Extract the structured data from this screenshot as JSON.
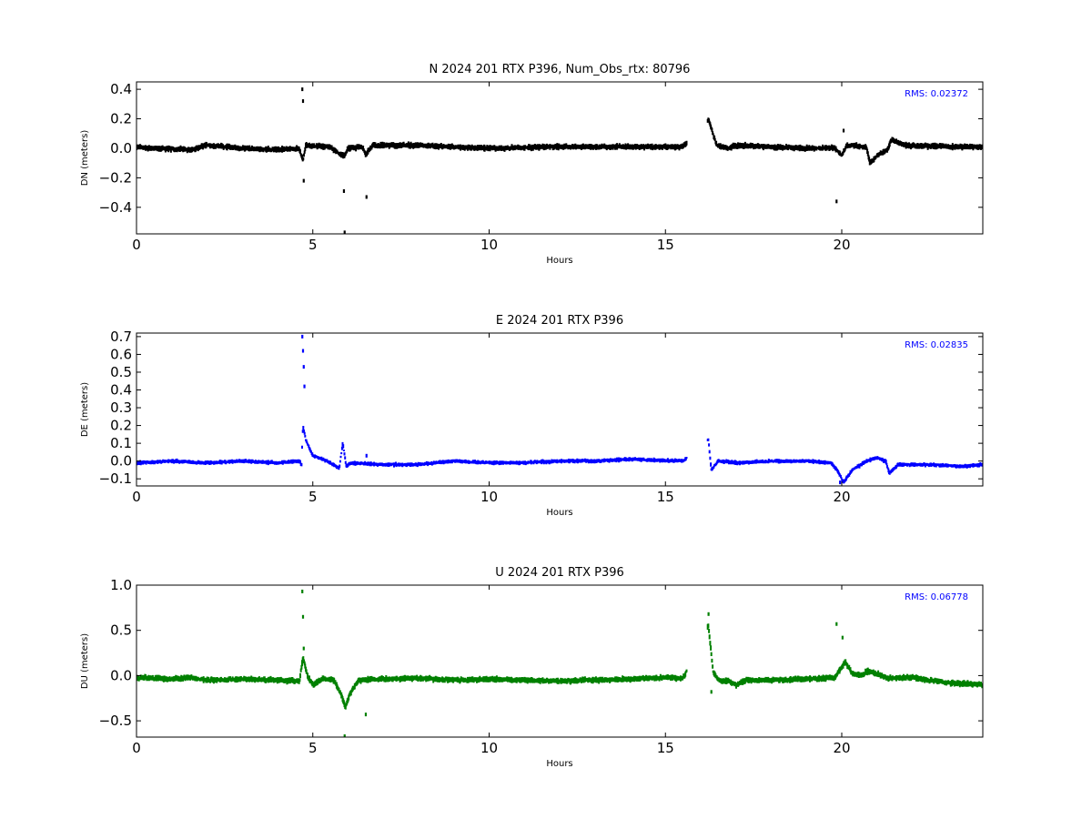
{
  "figure": {
    "background": "#ffffff"
  },
  "chart_data": [
    {
      "type": "scatter",
      "title": "N 2024 201 RTX  P396, Num_Obs_rtx: 80796",
      "xlabel": "Hours",
      "ylabel": "DN (meters)",
      "xlim": [
        0,
        24
      ],
      "ylim": [
        -0.58,
        0.45
      ],
      "xticks": [
        0,
        5,
        10,
        15,
        20
      ],
      "yticks": [
        -0.4,
        -0.2,
        0.0,
        0.2,
        0.4
      ],
      "ytick_labels": [
        "−0.4",
        "−0.2",
        "0.0",
        "0.2",
        "0.4"
      ],
      "rms_text": "RMS:  0.02372",
      "rms_color": "#0000ff",
      "series": [
        {
          "color": "#000000",
          "noise": 0.012,
          "gaps": [
            [
              15.6,
              16.2
            ]
          ],
          "baseline": [
            [
              0,
              0.01
            ],
            [
              0.5,
              0.0
            ],
            [
              1.5,
              -0.01
            ],
            [
              2.0,
              0.02
            ],
            [
              3.0,
              0.0
            ],
            [
              4.0,
              -0.01
            ],
            [
              4.6,
              0.0
            ],
            [
              4.72,
              -0.08
            ],
            [
              4.8,
              0.02
            ],
            [
              5.5,
              0.01
            ],
            [
              5.75,
              -0.04
            ],
            [
              5.9,
              -0.05
            ],
            [
              6.0,
              0.0
            ],
            [
              6.4,
              0.01
            ],
            [
              6.5,
              -0.04
            ],
            [
              6.7,
              0.02
            ],
            [
              8.0,
              0.02
            ],
            [
              10.0,
              0.0
            ],
            [
              12.0,
              0.01
            ],
            [
              15.5,
              0.01
            ],
            [
              16.22,
              0.2
            ],
            [
              16.45,
              0.02
            ],
            [
              16.8,
              0.0
            ],
            [
              17.0,
              0.02
            ],
            [
              18.0,
              0.01
            ],
            [
              19.0,
              0.0
            ],
            [
              19.8,
              0.0
            ],
            [
              20.0,
              -0.05
            ],
            [
              20.15,
              0.02
            ],
            [
              20.7,
              0.01
            ],
            [
              20.8,
              -0.1
            ],
            [
              21.0,
              -0.05
            ],
            [
              21.3,
              -0.01
            ],
            [
              21.4,
              0.06
            ],
            [
              21.8,
              0.02
            ],
            [
              23.0,
              0.01
            ],
            [
              24,
              0.01
            ]
          ],
          "spikes": [
            [
              4.7,
              0.4
            ],
            [
              4.72,
              0.32
            ],
            [
              4.74,
              -0.22
            ],
            [
              5.88,
              -0.29
            ],
            [
              5.9,
              -0.57
            ],
            [
              6.52,
              -0.33
            ],
            [
              19.85,
              -0.36
            ],
            [
              20.05,
              0.12
            ]
          ]
        }
      ]
    },
    {
      "type": "scatter",
      "title": "E 2024 201 RTX  P396",
      "xlabel": "Hours",
      "ylabel": "DE (meters)",
      "xlim": [
        0,
        24
      ],
      "ylim": [
        -0.14,
        0.72
      ],
      "xticks": [
        0,
        5,
        10,
        15,
        20
      ],
      "yticks": [
        -0.1,
        0.0,
        0.1,
        0.2,
        0.3,
        0.4,
        0.5,
        0.6,
        0.7
      ],
      "ytick_labels": [
        "−0.1",
        "0.0",
        "0.1",
        "0.2",
        "0.3",
        "0.4",
        "0.5",
        "0.6",
        "0.7"
      ],
      "rms_text": "RMS:  0.02835",
      "rms_color": "#0000ff",
      "series": [
        {
          "color": "#0000ff",
          "noise": 0.007,
          "gaps": [
            [
              15.6,
              16.2
            ]
          ],
          "baseline": [
            [
              0,
              -0.01
            ],
            [
              1.0,
              0.0
            ],
            [
              2.0,
              -0.01
            ],
            [
              3.0,
              0.0
            ],
            [
              4.0,
              -0.01
            ],
            [
              4.62,
              0.0
            ],
            [
              4.68,
              -0.02
            ],
            [
              4.72,
              0.2
            ],
            [
              4.8,
              0.12
            ],
            [
              5.0,
              0.03
            ],
            [
              5.4,
              0.0
            ],
            [
              5.75,
              -0.04
            ],
            [
              5.85,
              0.1
            ],
            [
              5.95,
              -0.03
            ],
            [
              6.1,
              -0.01
            ],
            [
              7.0,
              -0.02
            ],
            [
              8.0,
              -0.02
            ],
            [
              9.0,
              0.0
            ],
            [
              10.0,
              -0.01
            ],
            [
              11.0,
              -0.01
            ],
            [
              12.0,
              0.0
            ],
            [
              13.0,
              0.0
            ],
            [
              14.0,
              0.01
            ],
            [
              15.5,
              0.0
            ],
            [
              16.22,
              0.12
            ],
            [
              16.3,
              -0.05
            ],
            [
              16.5,
              0.0
            ],
            [
              17.0,
              -0.01
            ],
            [
              18.0,
              0.0
            ],
            [
              19.0,
              0.0
            ],
            [
              19.7,
              -0.01
            ],
            [
              19.9,
              -0.06
            ],
            [
              20.05,
              -0.12
            ],
            [
              20.3,
              -0.05
            ],
            [
              20.7,
              0.0
            ],
            [
              21.0,
              0.02
            ],
            [
              21.25,
              0.0
            ],
            [
              21.35,
              -0.07
            ],
            [
              21.6,
              -0.02
            ],
            [
              22.5,
              -0.02
            ],
            [
              23.5,
              -0.03
            ],
            [
              24,
              -0.02
            ]
          ],
          "spikes": [
            [
              4.7,
              0.7
            ],
            [
              4.72,
              0.62
            ],
            [
              4.74,
              0.53
            ],
            [
              4.76,
              0.42
            ],
            [
              6.52,
              0.03
            ],
            [
              16.3,
              -0.15
            ],
            [
              19.95,
              -0.12
            ]
          ]
        }
      ]
    },
    {
      "type": "scatter",
      "title": "U 2024 201 RTX  P396",
      "xlabel": "Hours",
      "ylabel": "DU (meters)",
      "xlim": [
        0,
        24
      ],
      "ylim": [
        -0.68,
        1.0
      ],
      "xticks": [
        0,
        5,
        10,
        15,
        20
      ],
      "yticks": [
        -0.5,
        0.0,
        0.5,
        1.0
      ],
      "ytick_labels": [
        "−0.5",
        "0.0",
        "0.5",
        "1.0"
      ],
      "rms_text": "RMS:  0.06778",
      "rms_color": "#0000ff",
      "series": [
        {
          "color": "#008000",
          "noise": 0.02,
          "gaps": [
            [
              15.6,
              16.2
            ]
          ],
          "baseline": [
            [
              0,
              -0.02
            ],
            [
              0.5,
              -0.03
            ],
            [
              1.0,
              -0.04
            ],
            [
              1.5,
              -0.02
            ],
            [
              2.0,
              -0.05
            ],
            [
              3.0,
              -0.04
            ],
            [
              4.0,
              -0.05
            ],
            [
              4.62,
              -0.06
            ],
            [
              4.72,
              0.2
            ],
            [
              4.85,
              0.0
            ],
            [
              5.0,
              -0.1
            ],
            [
              5.3,
              -0.03
            ],
            [
              5.6,
              -0.05
            ],
            [
              5.8,
              -0.2
            ],
            [
              5.92,
              -0.35
            ],
            [
              6.05,
              -0.2
            ],
            [
              6.3,
              -0.05
            ],
            [
              7.0,
              -0.04
            ],
            [
              8.0,
              -0.03
            ],
            [
              9.0,
              -0.05
            ],
            [
              10.0,
              -0.04
            ],
            [
              11.0,
              -0.05
            ],
            [
              12.0,
              -0.06
            ],
            [
              13.0,
              -0.05
            ],
            [
              14.0,
              -0.04
            ],
            [
              15.0,
              -0.02
            ],
            [
              15.5,
              -0.03
            ],
            [
              16.22,
              0.55
            ],
            [
              16.35,
              0.05
            ],
            [
              16.5,
              -0.05
            ],
            [
              16.8,
              -0.06
            ],
            [
              17.0,
              -0.1
            ],
            [
              17.3,
              -0.05
            ],
            [
              18.0,
              -0.05
            ],
            [
              19.0,
              -0.04
            ],
            [
              19.8,
              -0.02
            ],
            [
              20.1,
              0.15
            ],
            [
              20.3,
              0.02
            ],
            [
              20.6,
              0.0
            ],
            [
              20.7,
              0.05
            ],
            [
              21.0,
              0.02
            ],
            [
              21.3,
              -0.03
            ],
            [
              22.0,
              -0.02
            ],
            [
              22.5,
              -0.05
            ],
            [
              23.0,
              -0.08
            ],
            [
              24,
              -0.1
            ]
          ],
          "spikes": [
            [
              4.7,
              0.93
            ],
            [
              4.72,
              0.65
            ],
            [
              4.74,
              0.3
            ],
            [
              5.9,
              -0.67
            ],
            [
              6.5,
              -0.43
            ],
            [
              16.22,
              0.68
            ],
            [
              16.3,
              -0.18
            ],
            [
              19.85,
              0.57
            ],
            [
              20.02,
              0.42
            ]
          ]
        }
      ]
    }
  ]
}
